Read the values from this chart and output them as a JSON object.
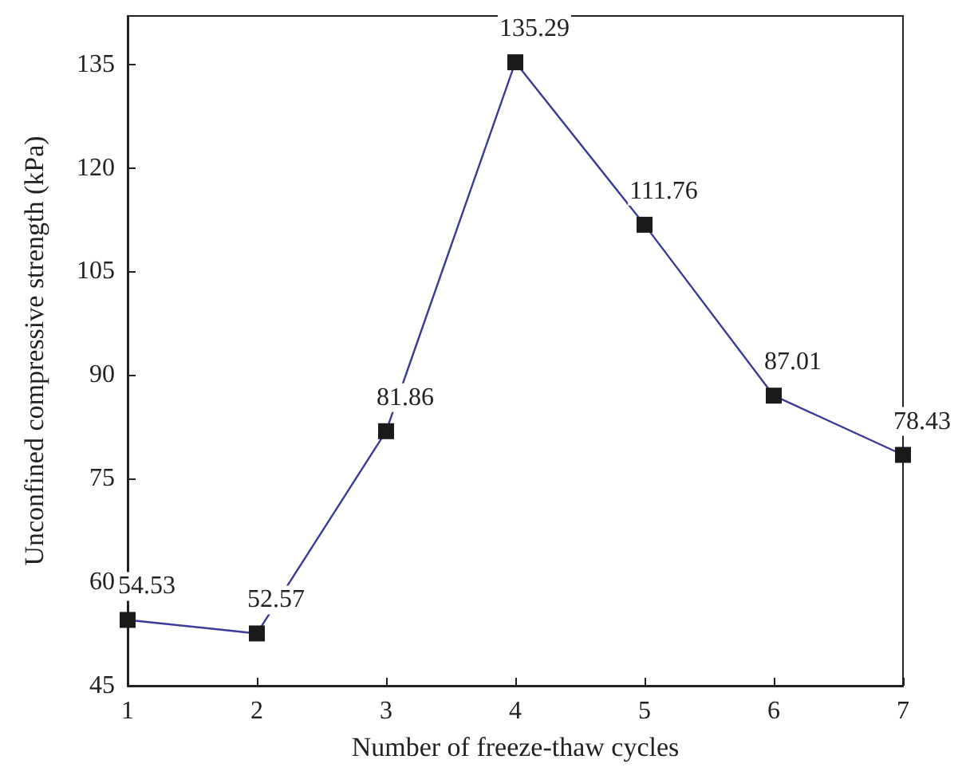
{
  "chart_data": {
    "type": "line",
    "xlabel": "Number of freeze-thaw cycles",
    "ylabel": "Unconfined compressive strength (kPa)",
    "x": [
      1,
      2,
      3,
      4,
      5,
      6,
      7
    ],
    "series": [
      {
        "color": "#3a3a9a",
        "values": [
          54.53,
          52.57,
          81.86,
          135.29,
          111.76,
          87.01,
          78.43
        ]
      }
    ],
    "data_labels": true,
    "marker": "square",
    "line_style": "solid",
    "grid": false,
    "xlim": [
      1,
      7
    ],
    "xticks": [
      1,
      2,
      3,
      4,
      5,
      6,
      7
    ],
    "ylim": [
      45,
      142
    ],
    "yticks": [
      45,
      60,
      75,
      90,
      105,
      120,
      135
    ]
  }
}
